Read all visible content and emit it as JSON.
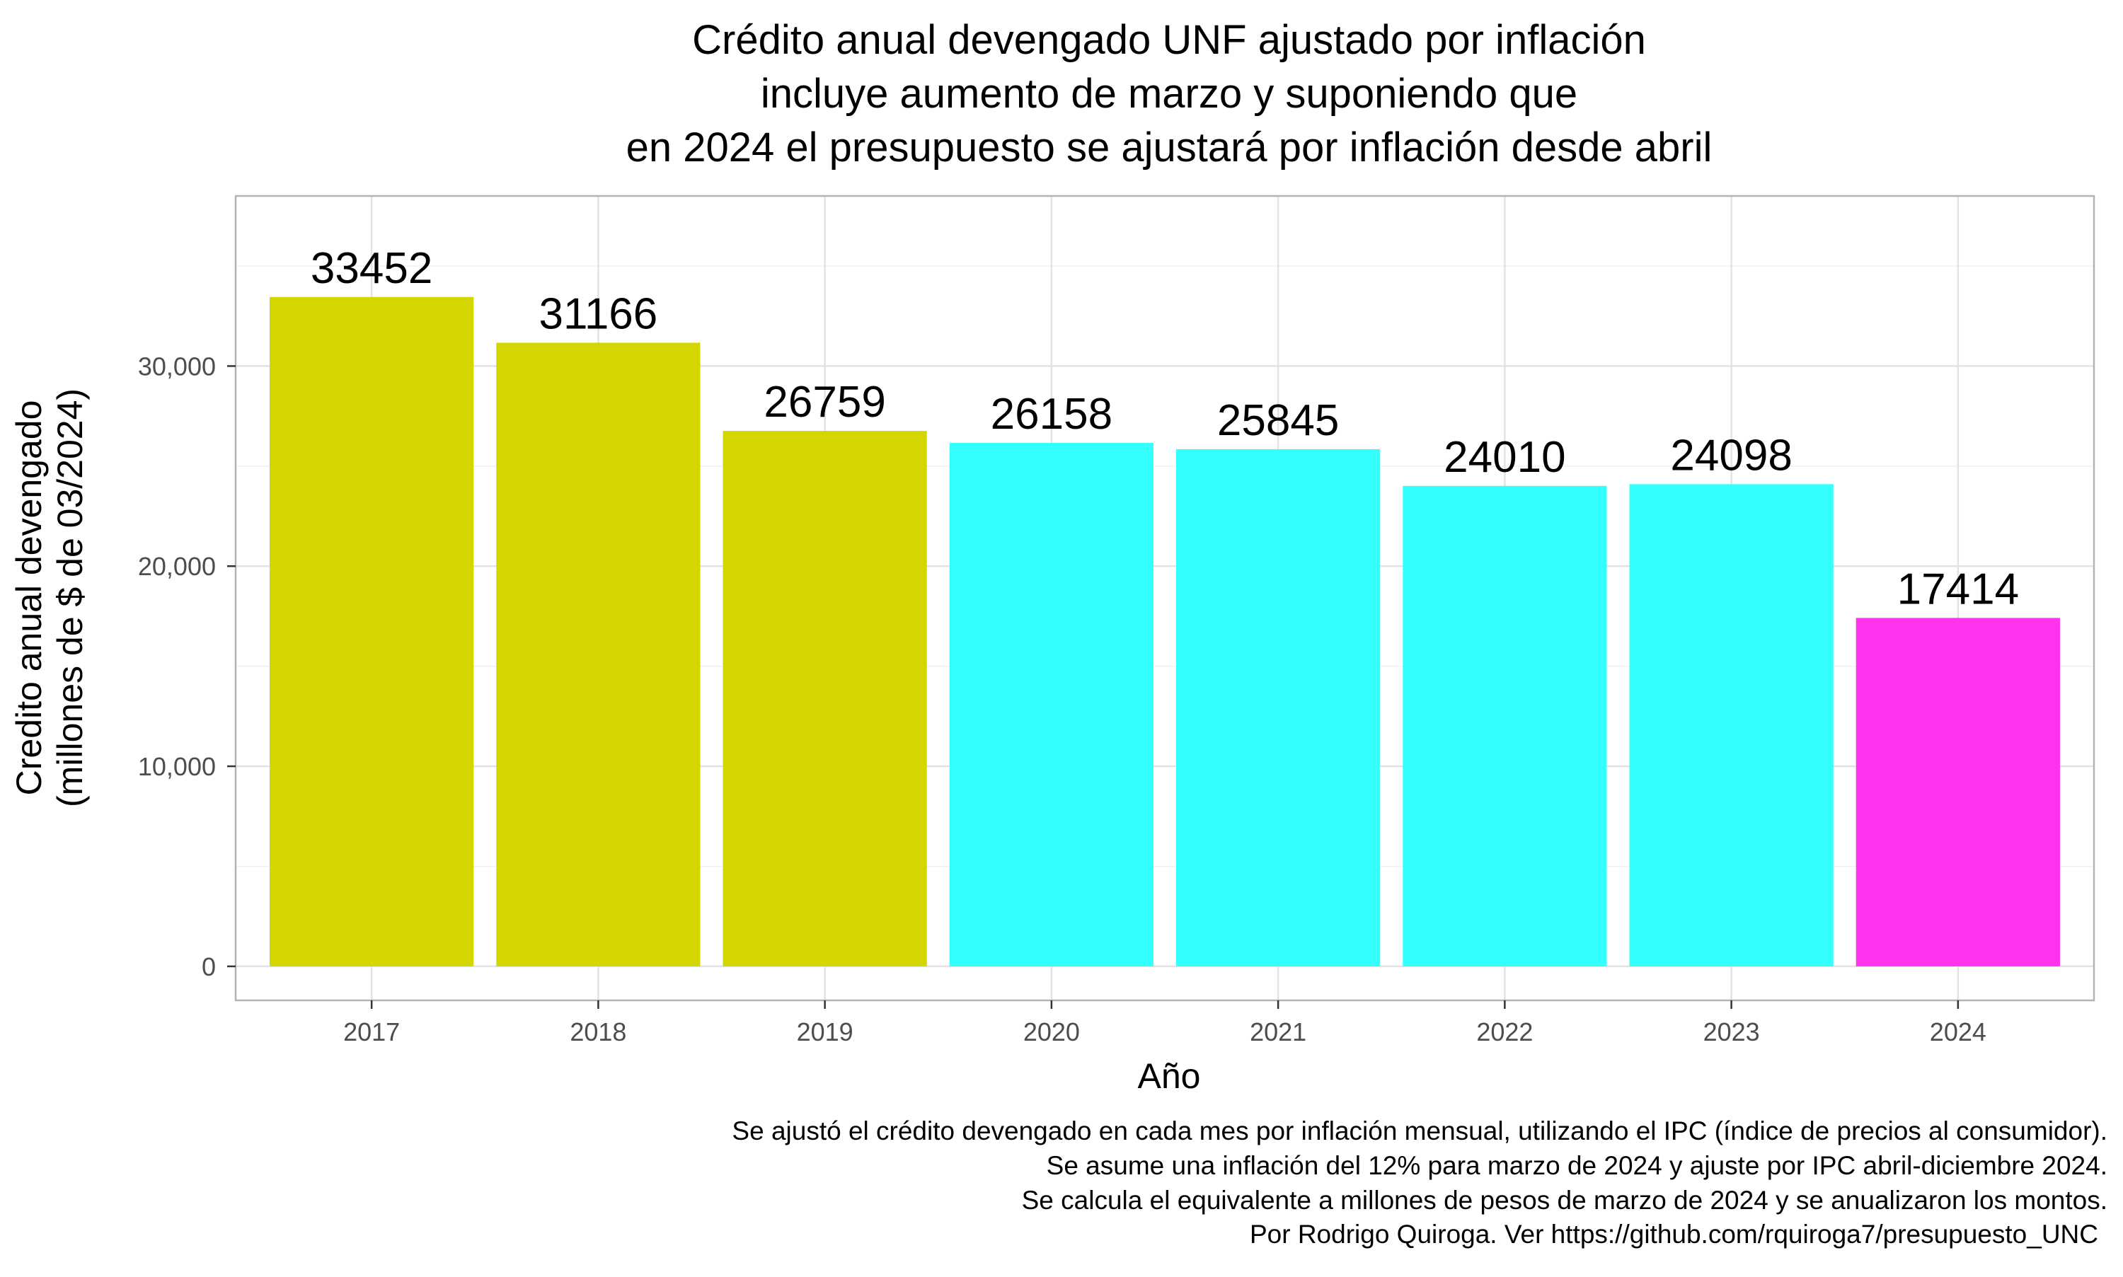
{
  "chart_data": {
    "type": "bar",
    "title": [
      "Crédito anual devengado UNF ajustado por inflación",
      "incluye aumento de marzo y suponiendo que",
      "en 2024 el presupuesto se ajustará por inflación desde abril"
    ],
    "xlabel": "Año",
    "ylabel": [
      "Credito anual devengado",
      "(millones de $ de 03/2024)"
    ],
    "categories": [
      "2017",
      "2018",
      "2019",
      "2020",
      "2021",
      "2022",
      "2023",
      "2024"
    ],
    "values": [
      33452,
      31166,
      26759,
      26158,
      25845,
      24010,
      24098,
      17414
    ],
    "data_labels": [
      "33452",
      "31166",
      "26759",
      "26158",
      "25845",
      "24010",
      "24098",
      "17414"
    ],
    "bar_colors": [
      "#d4d600",
      "#d4d600",
      "#d4d600",
      "#33ffff",
      "#33ffff",
      "#33ffff",
      "#33ffff",
      "#ff33ee"
    ],
    "ylim": [
      -1700,
      38500
    ],
    "y_ticks": [
      0,
      10000,
      20000,
      30000
    ],
    "y_tick_labels": [
      "0",
      "10,000",
      "20,000",
      "30,000"
    ],
    "grid": true,
    "legend": "none",
    "caption": [
      "Se ajustó el crédito devengado en cada mes por inflación mensual, utilizando el IPC (índice de precios al consumidor).",
      "Se asume una inflación del 12% para marzo de 2024 y ajuste por IPC abril-diciembre 2024.",
      "Se calcula el equivalente a millones de pesos de marzo de 2024 y se anualizaron los montos.",
      "Por Rodrigo Quiroga. Ver https://github.com/rquiroga7/presupuesto_UNC"
    ]
  }
}
